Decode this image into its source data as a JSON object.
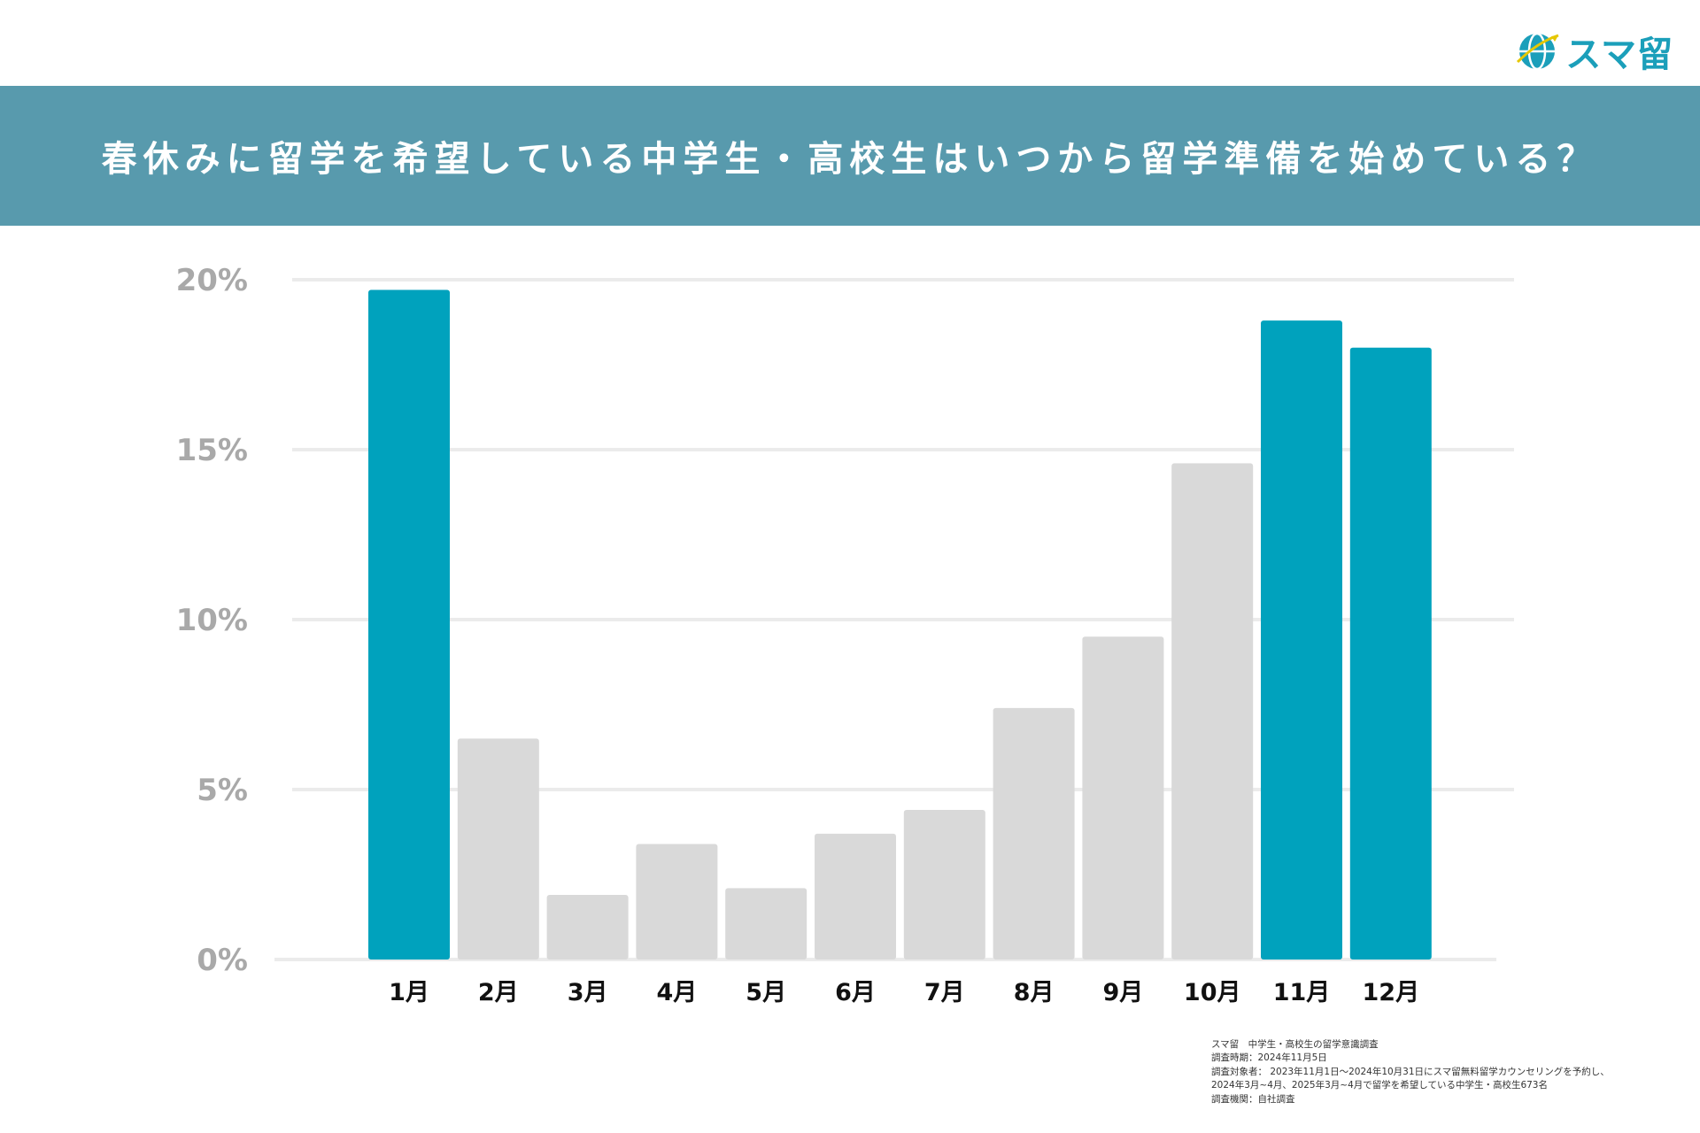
{
  "logo": {
    "text": "スマ留",
    "icon": "globe-icon"
  },
  "header": {
    "title": "春休みに留学を希望している中学生・高校生はいつから留学準備を始めている？"
  },
  "chart_data": {
    "type": "bar",
    "categories": [
      "1月",
      "2月",
      "3月",
      "4月",
      "5月",
      "6月",
      "7月",
      "8月",
      "9月",
      "10月",
      "11月",
      "12月"
    ],
    "values": [
      19.7,
      6.5,
      1.9,
      3.4,
      2.1,
      3.7,
      4.4,
      7.4,
      9.5,
      14.6,
      18.8,
      18.0
    ],
    "highlight": [
      true,
      false,
      false,
      false,
      false,
      false,
      false,
      false,
      false,
      false,
      true,
      true
    ],
    "ylim": [
      0,
      20
    ],
    "yticks": [
      0,
      5,
      10,
      15,
      20
    ],
    "ytick_labels": [
      "0%",
      "5%",
      "10%",
      "15%",
      "20%"
    ],
    "grid": true,
    "colors": {
      "highlight": "#00a2bd",
      "normal": "#d9d9d9",
      "grid": "#ebebeb"
    }
  },
  "source": {
    "lines": [
      "スマ留　中学生・高校生の留学意識調査",
      "調査時期：2024年11月5日",
      "調査対象者： 2023年11月1日〜2024年10月31日にスマ留無料留学カウンセリングを予約し、",
      "2024年3月~4月、2025年3月~4月で留学を希望している中学生・高校生673名",
      "調査機関：自社調査"
    ]
  },
  "colors": {
    "banner": "#589aad",
    "accent": "#1b9fba"
  }
}
